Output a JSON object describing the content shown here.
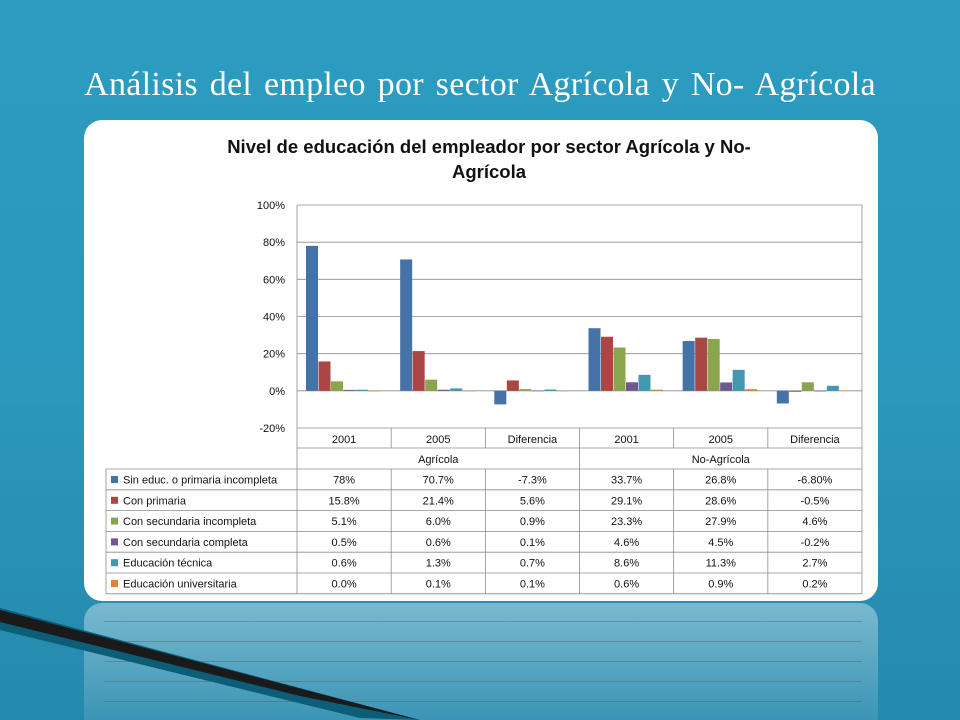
{
  "slide": {
    "title": "Análisis del empleo por sector Agrícola y No- Agrícola"
  },
  "chart_data": {
    "type": "bar",
    "title_line1": "Nivel de educación del empleador por sector Agrícola y No-",
    "title_line2": "Agrícola",
    "ylim": [
      -20,
      100
    ],
    "yticks": [
      "100%",
      "80%",
      "60%",
      "40%",
      "20%",
      "0%",
      "-20%"
    ],
    "categories": [
      "2001",
      "2005",
      "Diferencia",
      "2001",
      "2005",
      "Diferencia"
    ],
    "groups": [
      "Agrícola",
      "No-Agrícola"
    ],
    "grid": true,
    "legend_position": "table-left",
    "series": [
      {
        "name": "Sin educ. o primaria incompleta",
        "color": "#4572a7",
        "values": [
          78,
          70.7,
          -7.3,
          33.7,
          26.8,
          -6.8
        ],
        "labels": [
          "78%",
          "70.7%",
          "-7.3%",
          "33.7%",
          "26.8%",
          "-6.80%"
        ]
      },
      {
        "name": "Con primaria",
        "color": "#aa4643",
        "values": [
          15.8,
          21.4,
          5.6,
          29.1,
          28.6,
          -0.5
        ],
        "labels": [
          "15.8%",
          "21.4%",
          "5.6%",
          "29.1%",
          "28.6%",
          "-0.5%"
        ]
      },
      {
        "name": "Con secundaria incompleta",
        "color": "#89a54e",
        "values": [
          5.1,
          6.0,
          0.9,
          23.3,
          27.9,
          4.6
        ],
        "labels": [
          "5.1%",
          "6.0%",
          "0.9%",
          "23.3%",
          "27.9%",
          "4.6%"
        ]
      },
      {
        "name": "Con secundaria completa",
        "color": "#71588f",
        "values": [
          0.5,
          0.6,
          0.1,
          4.6,
          4.5,
          -0.2
        ],
        "labels": [
          "0.5%",
          "0.6%",
          "0.1%",
          "4.6%",
          "4.5%",
          "-0.2%"
        ]
      },
      {
        "name": "Educación técnica",
        "color": "#4198af",
        "values": [
          0.6,
          1.3,
          0.7,
          8.6,
          11.3,
          2.7
        ],
        "labels": [
          "0.6%",
          "1.3%",
          "0.7%",
          "8.6%",
          "11.3%",
          "2.7%"
        ]
      },
      {
        "name": "Educación universitaria",
        "color": "#db843d",
        "values": [
          0.0,
          0.1,
          0.1,
          0.6,
          0.9,
          0.2
        ],
        "labels": [
          "0.0%",
          "0.1%",
          "0.1%",
          "0.6%",
          "0.9%",
          "0.2%"
        ]
      }
    ]
  }
}
